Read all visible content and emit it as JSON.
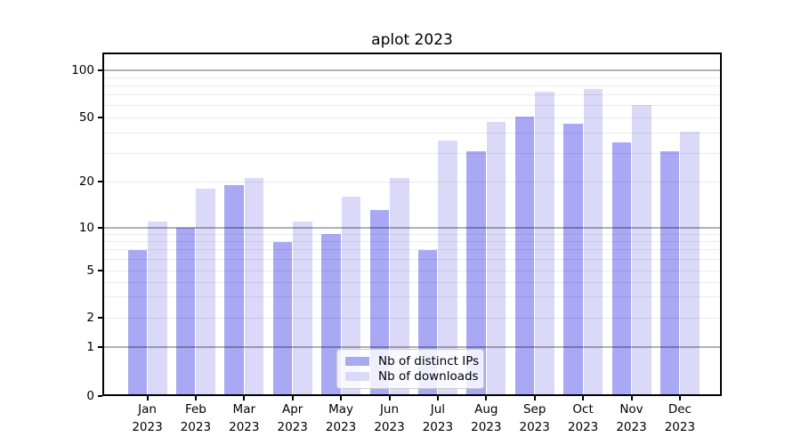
{
  "title": "aplot 2023",
  "chart_data": {
    "type": "bar",
    "title": "aplot 2023",
    "categories": [
      "Jan 2023",
      "Feb 2023",
      "Mar 2023",
      "Apr 2023",
      "May 2023",
      "Jun 2023",
      "Jul 2023",
      "Aug 2023",
      "Sep 2023",
      "Oct 2023",
      "Nov 2023",
      "Dec 2023"
    ],
    "series": [
      {
        "name": "Nb of distinct IPs",
        "key": "distinct-ips",
        "color": "#a8a8f4",
        "values": [
          7,
          10,
          19,
          8,
          9,
          13,
          7,
          31,
          51,
          46,
          35,
          31
        ]
      },
      {
        "name": "Nb of downloads",
        "key": "downloads",
        "color": "#dadaf8",
        "values": [
          11,
          18,
          21,
          11,
          16,
          21,
          36,
          47,
          73,
          76,
          60,
          41
        ]
      }
    ],
    "xlabel": "",
    "ylabel": "",
    "yscale": "symlog",
    "yticks": [
      0,
      1,
      2,
      5,
      10,
      20,
      50,
      100
    ],
    "ylim": [
      0,
      130
    ],
    "grid": "horizontal, major and minor",
    "legend_position": "lower center inside axes"
  }
}
